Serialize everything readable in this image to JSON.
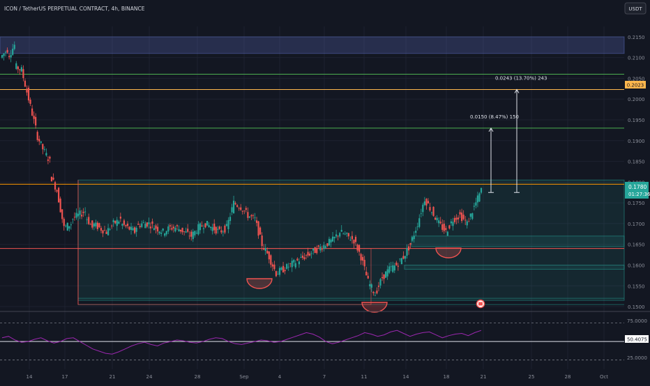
{
  "header": {
    "title": "ICON / TetherUS PERPETUAL CONTRACT, 4h, BINANCE",
    "currency_button": "USDT"
  },
  "colors": {
    "background": "#131722",
    "up": "#26a69a",
    "down": "#ef5350",
    "grid": "#1e2230",
    "axis_text": "#8b8f9a",
    "rsi_line": "#9c27b0"
  },
  "price_scale": {
    "ticks": [
      "0.2150",
      "0.2100",
      "0.2050",
      "0.2000",
      "0.1950",
      "0.1900",
      "0.1850",
      "0.1800",
      "0.1750",
      "0.1700",
      "0.1650",
      "0.1600",
      "0.1550",
      "0.1500"
    ],
    "current_price_label": "0.1780",
    "countdown_label": "01:27:36",
    "orange_line_label": "0.2023"
  },
  "rsi_scale": {
    "ticks": [
      "75.0000",
      "25.0000"
    ],
    "value_label": "50.4075"
  },
  "time_axis": {
    "labels": [
      "14",
      "17",
      "21",
      "24",
      "28",
      "Sep",
      "4",
      "7",
      "11",
      "14",
      "18",
      "21",
      "25",
      "28",
      "Oct"
    ]
  },
  "measure_annotations": [
    {
      "label": "0.0150 (8.47%) 150",
      "from": 0.1775,
      "to": 0.193
    },
    {
      "label": "0.0243 (13.70%) 243",
      "from": 0.1775,
      "to": 0.2023
    }
  ],
  "chart_data": {
    "type": "candlestick",
    "symbol": "ICON / TetherUS PERPETUAL CONTRACT",
    "interval": "4h",
    "exchange": "BINANCE",
    "y_range": [
      0.149,
      0.2175
    ],
    "horizontal_levels": [
      {
        "price": 0.206,
        "color": "#4caf50",
        "style": "solid"
      },
      {
        "price": 0.2023,
        "color": "#ffb74d",
        "style": "solid"
      },
      {
        "price": 0.193,
        "color": "#4caf50",
        "style": "solid"
      },
      {
        "price": 0.1795,
        "color": "#ff9800",
        "style": "solid"
      },
      {
        "price": 0.164,
        "color": "#ef5350",
        "style": "solid"
      }
    ],
    "zones": [
      {
        "top": 0.215,
        "bottom": 0.211,
        "color": "#5c6bc0"
      },
      {
        "top": 0.1805,
        "bottom": 0.1515,
        "color": "#26a69a"
      },
      {
        "top": 0.167,
        "bottom": 0.1645,
        "color": "#26a69a"
      },
      {
        "top": 0.16,
        "bottom": 0.159,
        "color": "#26a69a"
      }
    ],
    "waypoints": [
      [
        0.21,
        0.212
      ],
      [
        0.21,
        0.213
      ],
      [
        0.208,
        0.207
      ],
      [
        0.207,
        0.2
      ],
      [
        0.2,
        0.193
      ],
      [
        0.192,
        0.188
      ],
      [
        0.188,
        0.185
      ],
      [
        0.182,
        0.178
      ],
      [
        0.178,
        0.169
      ],
      [
        0.169,
        0.17
      ],
      [
        0.171,
        0.172
      ],
      [
        0.172,
        0.173
      ],
      [
        0.172,
        0.169
      ],
      [
        0.17,
        0.169
      ],
      [
        0.169,
        0.168
      ],
      [
        0.168,
        0.17
      ],
      [
        0.17,
        0.171
      ],
      [
        0.17,
        0.169
      ],
      [
        0.169,
        0.168
      ],
      [
        0.169,
        0.17
      ],
      [
        0.17,
        0.17
      ],
      [
        0.17,
        0.169
      ],
      [
        0.169,
        0.168
      ],
      [
        0.168,
        0.169
      ],
      [
        0.169,
        0.169
      ],
      [
        0.169,
        0.168
      ],
      [
        0.168,
        0.167
      ],
      [
        0.167,
        0.169
      ],
      [
        0.169,
        0.17
      ],
      [
        0.17,
        0.169
      ],
      [
        0.169,
        0.168
      ],
      [
        0.168,
        0.169
      ],
      [
        0.169,
        0.175
      ],
      [
        0.175,
        0.174
      ],
      [
        0.174,
        0.172
      ],
      [
        0.172,
        0.171
      ],
      [
        0.171,
        0.165
      ],
      [
        0.165,
        0.162
      ],
      [
        0.162,
        0.158
      ],
      [
        0.158,
        0.159
      ],
      [
        0.159,
        0.16
      ],
      [
        0.16,
        0.161
      ],
      [
        0.161,
        0.162
      ],
      [
        0.162,
        0.163
      ],
      [
        0.163,
        0.164
      ],
      [
        0.164,
        0.165
      ],
      [
        0.165,
        0.166
      ],
      [
        0.166,
        0.168
      ],
      [
        0.168,
        0.167
      ],
      [
        0.167,
        0.166
      ],
      [
        0.166,
        0.162
      ],
      [
        0.162,
        0.156
      ],
      [
        0.156,
        0.153
      ],
      [
        0.153,
        0.157
      ],
      [
        0.157,
        0.159
      ],
      [
        0.159,
        0.16
      ],
      [
        0.16,
        0.162
      ],
      [
        0.162,
        0.165
      ],
      [
        0.165,
        0.17
      ],
      [
        0.17,
        0.176
      ],
      [
        0.176,
        0.173
      ],
      [
        0.173,
        0.17
      ],
      [
        0.17,
        0.168
      ],
      [
        0.168,
        0.171
      ],
      [
        0.171,
        0.172
      ],
      [
        0.172,
        0.17
      ],
      [
        0.17,
        0.174
      ],
      [
        0.174,
        0.178
      ]
    ],
    "rsi": {
      "levels": [
        75,
        50,
        25
      ],
      "y_range": [
        20,
        85
      ],
      "values": [
        55,
        57,
        52,
        49,
        50,
        53,
        55,
        51,
        48,
        50,
        54,
        55,
        50,
        45,
        40,
        37,
        34,
        33,
        36,
        40,
        44,
        47,
        49,
        46,
        44,
        48,
        50,
        52,
        51,
        49,
        48,
        50,
        53,
        55,
        54,
        50,
        47,
        46,
        48,
        50,
        52,
        51,
        49,
        50,
        53,
        56,
        59,
        62,
        60,
        56,
        50,
        47,
        49,
        52,
        55,
        58,
        62,
        60,
        57,
        59,
        63,
        65,
        61,
        57,
        60,
        62,
        63,
        59,
        55,
        58,
        60,
        61,
        58,
        62,
        65
      ]
    }
  }
}
